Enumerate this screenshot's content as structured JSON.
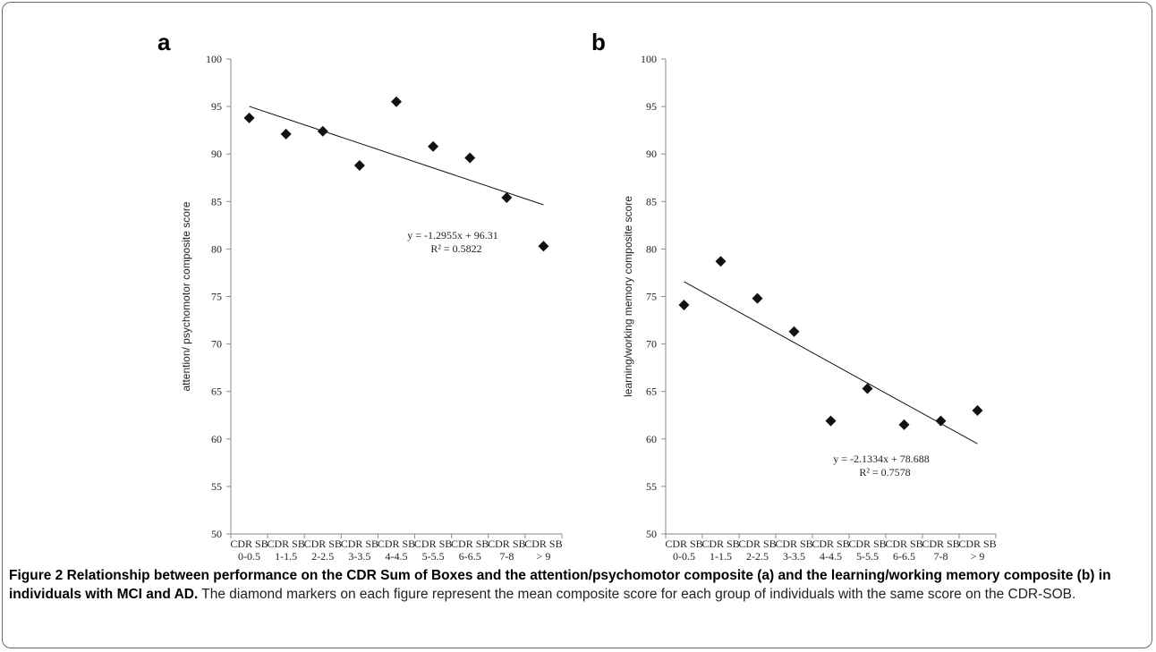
{
  "figure": {
    "label": "Figure 2",
    "caption_title": "Relationship between performance on the CDR Sum of Boxes and the attention/psychomotor composite (a) and the learning/working memory composite (b) in individuals with MCI and AD.",
    "caption_body": "The diamond markers on each figure represent the mean composite score for each group of individuals with the same score on the CDR-SOB."
  },
  "chart_data": [
    {
      "type": "scatter",
      "panel": "a",
      "title": "",
      "xlabel": "",
      "ylabel": "attention/ psychomotor  composite score",
      "ylim": [
        50,
        100
      ],
      "yticks": [
        50,
        55,
        60,
        65,
        70,
        75,
        80,
        85,
        90,
        95,
        100
      ],
      "categories": [
        [
          "CDR SB",
          "0-0.5"
        ],
        [
          "CDR SB",
          "1-1.5"
        ],
        [
          "CDR SB",
          "2-2.5"
        ],
        [
          "CDR SB",
          "3-3.5"
        ],
        [
          "CDR SB",
          "4-4.5"
        ],
        [
          "CDR SB",
          "5-5.5"
        ],
        [
          "CDR SB",
          "6-6.5"
        ],
        [
          "CDR SB",
          "7-8"
        ],
        [
          "CDR SB",
          "> 9"
        ]
      ],
      "values": [
        93.8,
        92.1,
        92.4,
        88.8,
        95.5,
        90.8,
        89.6,
        85.4,
        80.3
      ],
      "trendline": {
        "slope": -1.2955,
        "intercept": 96.31
      },
      "equation": "y = -1.2955x + 96.31",
      "r2_label": "R² = 0.5822",
      "grid": false,
      "marker": "diamond"
    },
    {
      "type": "scatter",
      "panel": "b",
      "title": "",
      "xlabel": "",
      "ylabel": "learning/working memory composite score",
      "ylim": [
        50,
        100
      ],
      "yticks": [
        50,
        55,
        60,
        65,
        70,
        75,
        80,
        85,
        90,
        95,
        100
      ],
      "categories": [
        [
          "CDR SB",
          "0-0.5"
        ],
        [
          "CDR SB",
          "1-1.5"
        ],
        [
          "CDR SB",
          "2-2.5"
        ],
        [
          "CDR SB",
          "3-3.5"
        ],
        [
          "CDR SB",
          "4-4.5"
        ],
        [
          "CDR SB",
          "5-5.5"
        ],
        [
          "CDR SB",
          "6-6.5"
        ],
        [
          "CDR SB",
          "7-8"
        ],
        [
          "CDR SB",
          "> 9"
        ]
      ],
      "values": [
        74.1,
        78.7,
        74.8,
        71.3,
        61.9,
        65.3,
        61.5,
        61.9,
        63.0
      ],
      "trendline": {
        "slope": -2.1334,
        "intercept": 78.688
      },
      "equation": "y = -2.1334x + 78.688",
      "r2_label": "R² = 0.7578",
      "grid": false,
      "marker": "diamond"
    }
  ]
}
